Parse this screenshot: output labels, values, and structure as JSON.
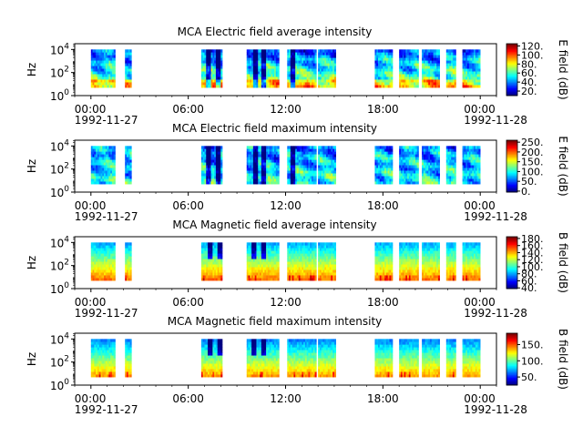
{
  "chart_data": [
    {
      "type": "heatmap",
      "title": "MCA  Electric field average intensity",
      "ylabel": "Hz",
      "colorbar_label": "E field (dB)",
      "colorbar_ticks": [
        "20.",
        "40.",
        "60.",
        "80.",
        "100.",
        "120."
      ],
      "colorbar_range": [
        10,
        125
      ],
      "field": "E",
      "stat": "avg",
      "variant": 0
    },
    {
      "type": "heatmap",
      "title": "MCA  Electric field maximum intensity",
      "ylabel": "Hz",
      "colorbar_label": "E field (dB)",
      "colorbar_ticks": [
        "0.",
        "50.",
        "100.",
        "150.",
        "200.",
        "250."
      ],
      "colorbar_range": [
        -5,
        260
      ],
      "field": "E",
      "stat": "max",
      "variant": 1
    },
    {
      "type": "heatmap",
      "title": "MCA  Magnetic field average intensity",
      "ylabel": "Hz",
      "colorbar_label": "B field (dB)",
      "colorbar_ticks": [
        "40.",
        "60.",
        "80.",
        "100.",
        "120.",
        "140.",
        "160.",
        "180."
      ],
      "colorbar_range": [
        38,
        185
      ],
      "field": "B",
      "stat": "avg",
      "variant": 2
    },
    {
      "type": "heatmap",
      "title": "MCA  Magnetic field maximum intensity",
      "ylabel": "Hz",
      "colorbar_label": "B field (dB)",
      "colorbar_ticks": [
        "50.",
        "100.",
        "150."
      ],
      "colorbar_range": [
        25,
        185
      ],
      "field": "B",
      "stat": "max",
      "variant": 3
    }
  ],
  "shared": {
    "x_ticks": [
      {
        "hour": 0,
        "line1": "00:00",
        "line2": "1992-11-27"
      },
      {
        "hour": 6,
        "line1": "06:00",
        "line2": ""
      },
      {
        "hour": 12,
        "line1": "12:00",
        "line2": ""
      },
      {
        "hour": 18,
        "line1": "18:00",
        "line2": ""
      },
      {
        "hour": 24,
        "line1": "00:00",
        "line2": "1992-11-28"
      }
    ],
    "xlim_hours": [
      -1,
      25
    ],
    "y_ticks": [
      {
        "exp": 0,
        "base": "10",
        "sup": "0"
      },
      {
        "exp": 2,
        "base": "10",
        "sup": "2"
      },
      {
        "exp": 4,
        "base": "10",
        "sup": "4"
      }
    ],
    "ylim_log10": [
      0,
      4.5
    ],
    "data_freq_range_log10": [
      0.7,
      4.0
    ],
    "data_segments_hours": [
      [
        0.0,
        1.5
      ],
      [
        2.1,
        2.5
      ],
      [
        6.8,
        8.1
      ],
      [
        9.6,
        11.6
      ],
      [
        12.1,
        13.9
      ],
      [
        14.0,
        15.1
      ],
      [
        17.5,
        18.6
      ],
      [
        19.0,
        20.2
      ],
      [
        20.4,
        21.5
      ],
      [
        21.9,
        22.5
      ],
      [
        22.9,
        24.0
      ]
    ],
    "colormap": [
      "#00007f",
      "#0000ff",
      "#007fff",
      "#00ffff",
      "#7fff7f",
      "#ffff00",
      "#ff7f00",
      "#ff0000",
      "#7f0000"
    ]
  }
}
